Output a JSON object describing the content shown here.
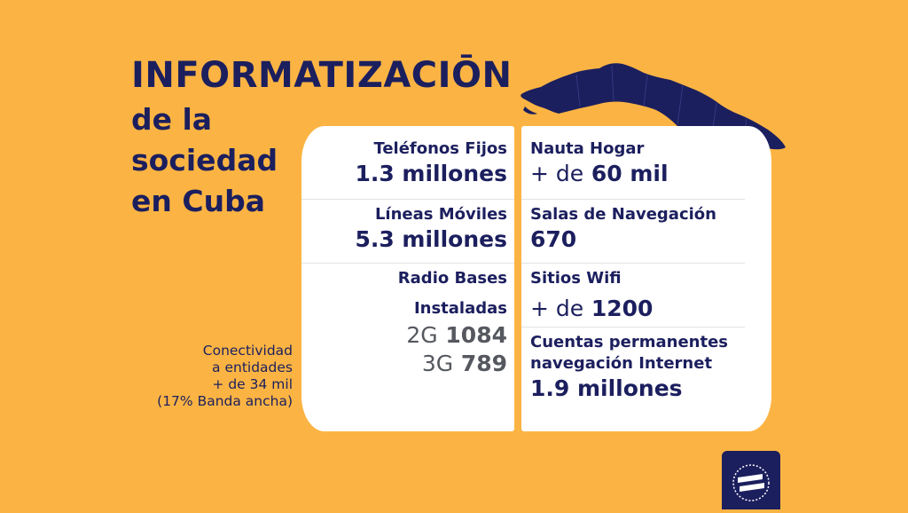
{
  "title": {
    "main": "INFORMATIZACIŌN",
    "line1": "de la",
    "line2": "sociedad",
    "line3": "en Cuba"
  },
  "left": {
    "fijos_label": "Teléfonos Fijos",
    "fijos_value": "1.3 millones",
    "moviles_label": "Líneas Móviles",
    "moviles_value": "5.3 millones",
    "radio_label1": "Radio Bases",
    "radio_label2": "Instaladas",
    "g2_prefix": "2G",
    "g2_value": "1084",
    "g3_prefix": "3G",
    "g3_value": "789"
  },
  "right": {
    "nauta_label": "Nauta Hogar",
    "nauta_prefix": "+ de",
    "nauta_value": "60 mil",
    "salas_label": "Salas de Navegación",
    "salas_value": "670",
    "wifi_label": "Sitios Wifi",
    "wifi_prefix": "+ de",
    "wifi_value": "1200",
    "cuentas_label1": "Cuentas permanentes",
    "cuentas_label2": "navegación Internet",
    "cuentas_value": "1.9 millones"
  },
  "side_note": {
    "line1": "Conectividad",
    "line2": "a entidades",
    "line3": "+ de 34 mil",
    "line4": "(17% Banda ancha)"
  },
  "colors": {
    "background": "#fbb443",
    "navy": "#1c1f5e",
    "panel": "#ffffff"
  },
  "icons": {
    "map": "cuba-map",
    "logo": "etecsa-logo"
  }
}
